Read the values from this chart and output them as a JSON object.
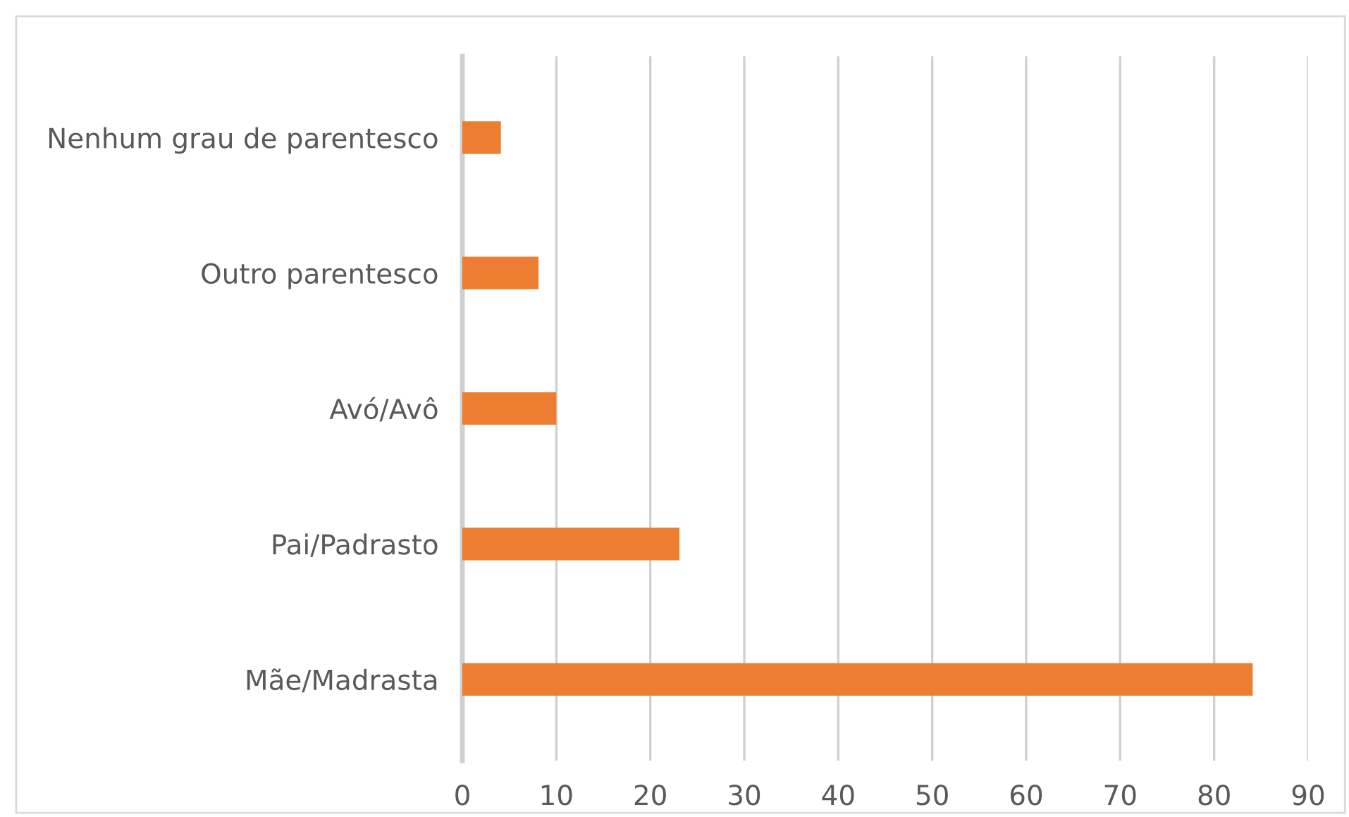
{
  "chart_data": {
    "type": "bar",
    "orientation": "horizontal",
    "categories": [
      "Nenhum grau de parentesco",
      "Outro parentesco",
      "Avó/Avô",
      "Pai/Padrasto",
      "Mãe/Madrasta"
    ],
    "values": [
      4.1,
      8.1,
      10,
      23.1,
      84.1
    ],
    "color": "#ed7d31",
    "xlim": [
      0,
      90
    ],
    "xticks": [
      0,
      10,
      20,
      30,
      40,
      50,
      60,
      70,
      80,
      90
    ],
    "grid": "x"
  }
}
